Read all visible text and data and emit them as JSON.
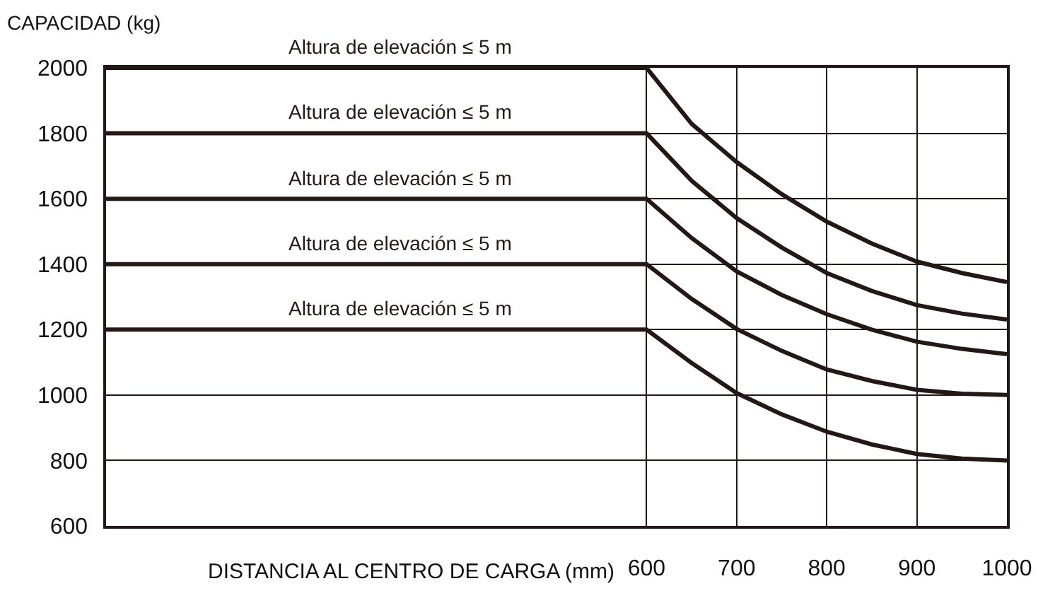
{
  "chart_data": {
    "type": "line",
    "ylabel": "CAPACIDAD (kg)",
    "xlabel": "DISTANCIA AL CENTRO DE CARGA (mm)",
    "x": [
      0,
      600,
      650,
      700,
      750,
      800,
      850,
      900,
      950,
      1000
    ],
    "series": [
      {
        "color": "#231815",
        "values": [
          2000,
          2000,
          1829,
          1712,
          1614,
          1530,
          1463,
          1408,
          1373,
          1345
        ]
      },
      {
        "color": "#231815",
        "values": [
          1800,
          1800,
          1655,
          1541,
          1451,
          1373,
          1318,
          1275,
          1249,
          1231
        ]
      },
      {
        "color": "#231815",
        "values": [
          1600,
          1600,
          1480,
          1378,
          1306,
          1247,
          1200,
          1163,
          1141,
          1125
        ]
      },
      {
        "color": "#231815",
        "values": [
          1400,
          1400,
          1294,
          1202,
          1135,
          1078,
          1043,
          1016,
          1004,
          1000
        ]
      },
      {
        "color": "#231815",
        "values": [
          1200,
          1200,
          1098,
          1006,
          941,
          888,
          849,
          820,
          806,
          800
        ]
      }
    ],
    "annotations": [
      "Altura de elevación ≤ 5 m",
      "Altura de elevación ≤ 5 m",
      "Altura de elevación ≤ 5 m",
      "Altura de elevación ≤ 5 m",
      "Altura de elevación ≤ 5 m"
    ],
    "xlim": [
      0,
      1000
    ],
    "xticks": [
      600,
      700,
      800,
      900,
      1000
    ],
    "ylim": [
      600,
      2000
    ],
    "yticks": [
      600,
      800,
      1000,
      1200,
      1400,
      1600,
      1800,
      2000
    ],
    "grid": true,
    "marker": "none",
    "line_style": "solid"
  }
}
